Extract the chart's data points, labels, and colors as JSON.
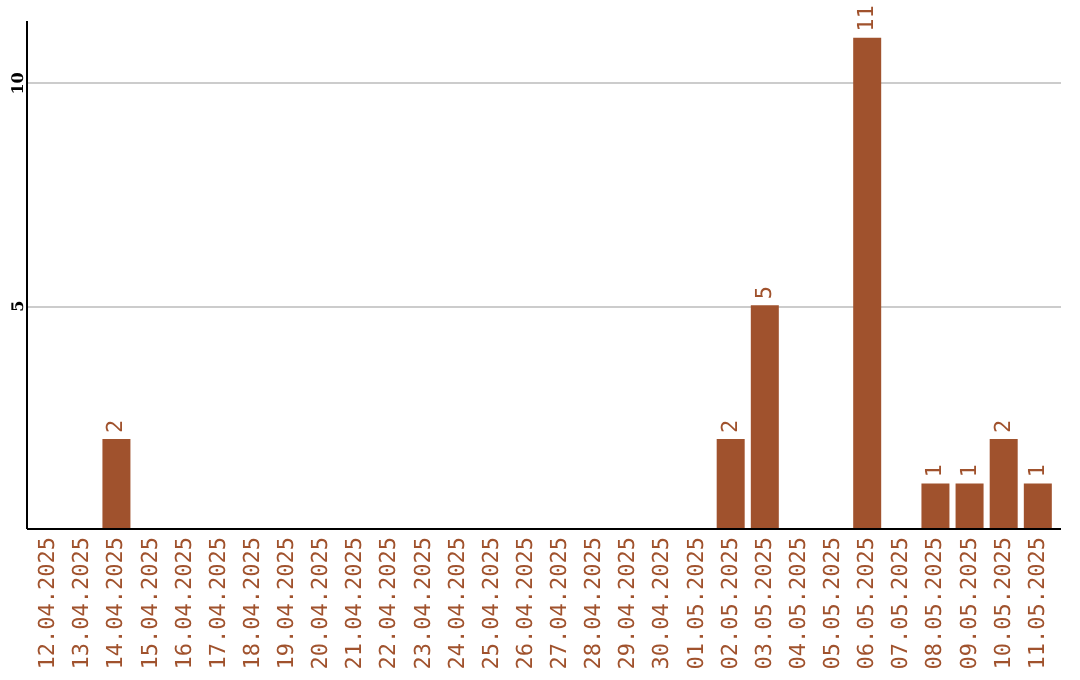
{
  "chart_data": {
    "type": "bar",
    "categories": [
      "12.04.2025",
      "13.04.2025",
      "14.04.2025",
      "15.04.2025",
      "16.04.2025",
      "17.04.2025",
      "18.04.2025",
      "19.04.2025",
      "20.04.2025",
      "21.04.2025",
      "22.04.2025",
      "23.04.2025",
      "24.04.2025",
      "25.04.2025",
      "26.04.2025",
      "27.04.2025",
      "28.04.2025",
      "29.04.2025",
      "30.04.2025",
      "01.05.2025",
      "02.05.2025",
      "03.05.2025",
      "04.05.2025",
      "05.05.2025",
      "06.05.2025",
      "07.05.2025",
      "08.05.2025",
      "09.05.2025",
      "10.05.2025",
      "11.05.2025"
    ],
    "values": [
      0,
      0,
      2,
      0,
      0,
      0,
      0,
      0,
      0,
      0,
      0,
      0,
      0,
      0,
      0,
      0,
      0,
      0,
      0,
      0,
      2,
      5,
      0,
      0,
      11,
      0,
      1,
      1,
      2,
      1
    ],
    "value_labels": [
      null,
      null,
      "2",
      null,
      null,
      null,
      null,
      null,
      null,
      null,
      null,
      null,
      null,
      null,
      null,
      null,
      null,
      null,
      null,
      null,
      "2",
      "5",
      null,
      null,
      "11",
      null,
      "1",
      "1",
      "2",
      "1"
    ],
    "color": "#a0522d",
    "ylim": [
      0,
      11.4
    ],
    "yticks": [
      5,
      10
    ],
    "grid": "y"
  }
}
